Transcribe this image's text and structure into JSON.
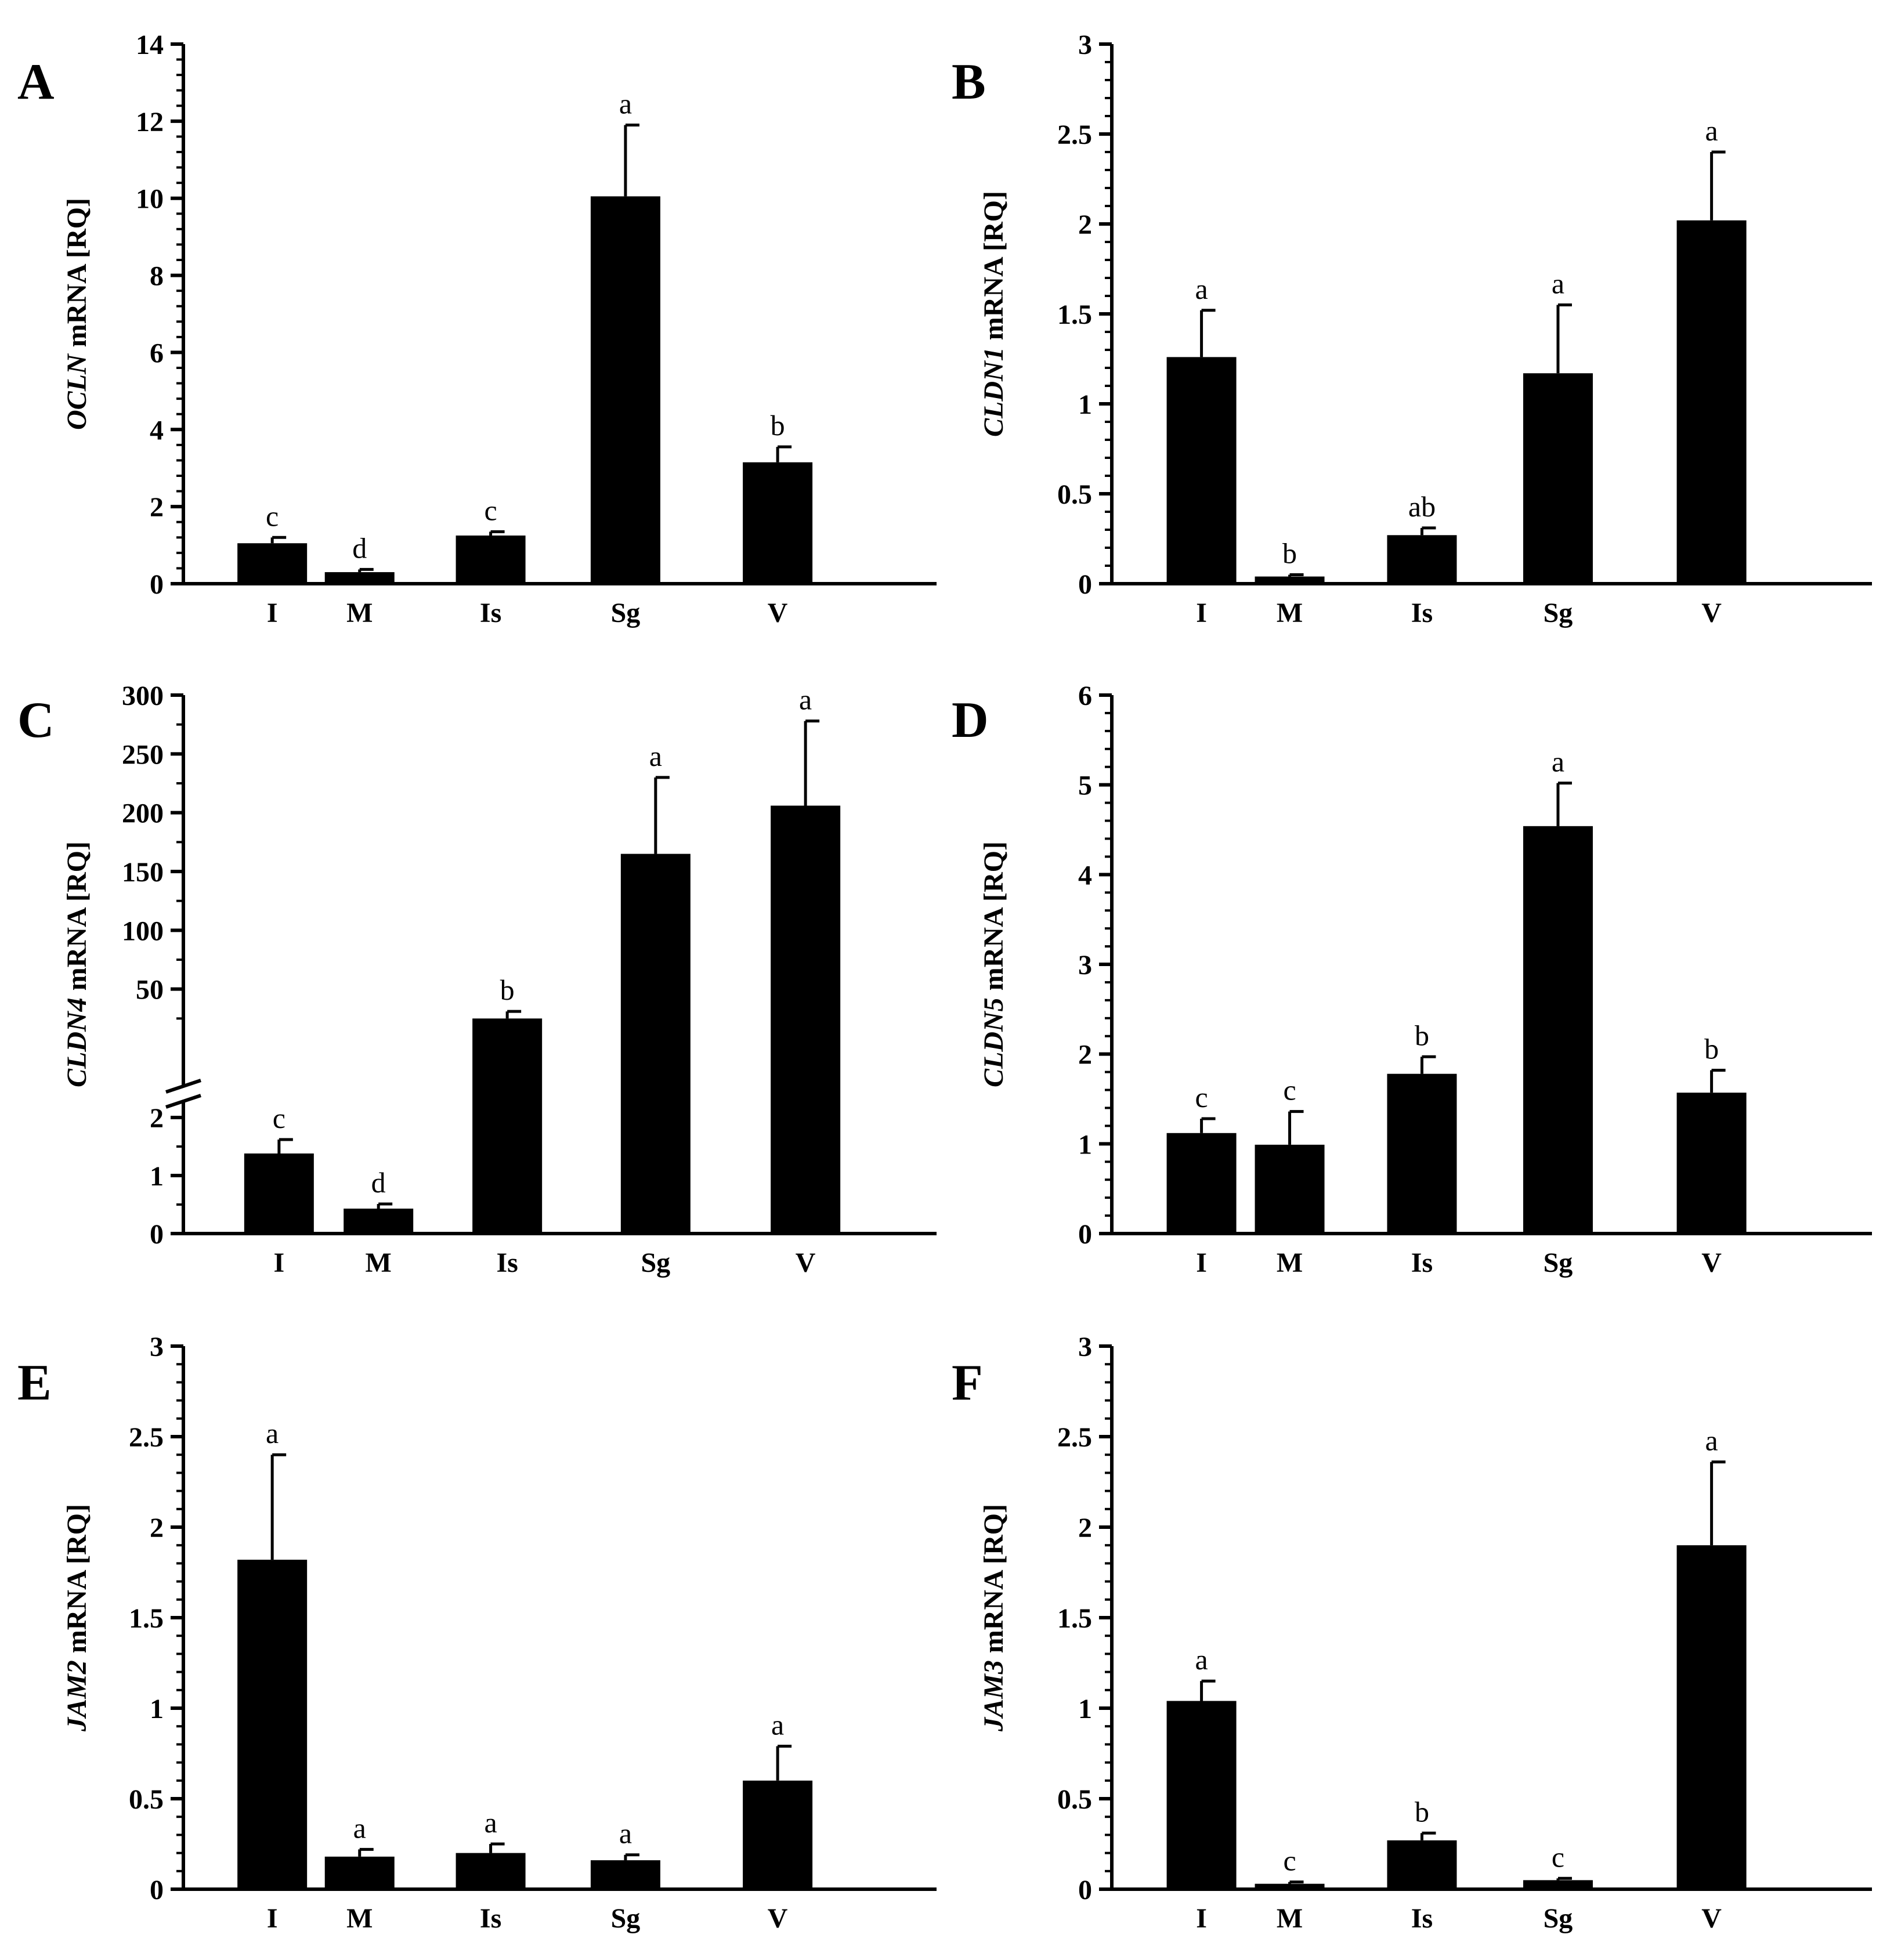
{
  "chart_data": [
    {
      "panel": "A",
      "type": "bar",
      "ylabel_gene": "OCLN",
      "ylabel_rest": " mRNA [RQ]",
      "categories": [
        "I",
        "M",
        "Is",
        "Sg",
        "V"
      ],
      "values": [
        1.05,
        0.3,
        1.25,
        10.05,
        3.15
      ],
      "errors": [
        0.15,
        0.07,
        0.1,
        1.85,
        0.4
      ],
      "significance": [
        "c",
        "d",
        "c",
        "a",
        "b"
      ],
      "yticks": [
        "0",
        "2",
        "4",
        "6",
        "8",
        "10",
        "12",
        "14"
      ],
      "ylim": [
        0,
        14
      ]
    },
    {
      "panel": "B",
      "type": "bar",
      "ylabel_gene": "CLDN1",
      "ylabel_rest": " mRNA [RQ]",
      "categories": [
        "I",
        "M",
        "Is",
        "Sg",
        "V"
      ],
      "values": [
        1.26,
        0.04,
        0.27,
        1.17,
        2.02
      ],
      "errors": [
        0.26,
        0.01,
        0.04,
        0.38,
        0.38
      ],
      "significance": [
        "a",
        "b",
        "ab",
        "a",
        "a"
      ],
      "yticks": [
        "0",
        "0.5",
        "1",
        "1.5",
        "2",
        "2.5",
        "3"
      ],
      "ylim": [
        0,
        3
      ]
    },
    {
      "panel": "C",
      "type": "bar",
      "axis_break": true,
      "ylabel_gene": "CLDN4",
      "ylabel_rest": " mRNA [RQ]",
      "categories": [
        "I",
        "M",
        "Is",
        "Sg",
        "V"
      ],
      "values": [
        1.38,
        0.43,
        25,
        165,
        206
      ],
      "errors": [
        0.24,
        0.08,
        6,
        65,
        72
      ],
      "significance": [
        "c",
        "d",
        "b",
        "a",
        "a"
      ],
      "yticks_lower": [
        "0",
        "1",
        "2"
      ],
      "yticks_upper": [
        "50",
        "100",
        "150",
        "200",
        "250",
        "300"
      ],
      "lower_range": [
        0,
        2
      ],
      "upper_range": [
        0,
        300
      ]
    },
    {
      "panel": "D",
      "type": "bar",
      "ylabel_gene": "CLDN5",
      "ylabel_rest": " mRNA [RQ]",
      "categories": [
        "I",
        "M",
        "Is",
        "Sg",
        "V"
      ],
      "values": [
        1.12,
        0.99,
        1.78,
        4.54,
        1.57
      ],
      "errors": [
        0.16,
        0.37,
        0.19,
        0.48,
        0.25
      ],
      "significance": [
        "c",
        "c",
        "b",
        "a",
        "b"
      ],
      "yticks": [
        "0",
        "1",
        "2",
        "3",
        "4",
        "5",
        "6"
      ],
      "ylim": [
        0,
        6
      ]
    },
    {
      "panel": "E",
      "type": "bar",
      "ylabel_gene": "JAM2",
      "ylabel_rest": " mRNA [RQ]",
      "categories": [
        "I",
        "M",
        "Is",
        "Sg",
        "V"
      ],
      "values": [
        1.82,
        0.18,
        0.2,
        0.16,
        0.6
      ],
      "errors": [
        0.58,
        0.04,
        0.05,
        0.03,
        0.19
      ],
      "significance": [
        "a",
        "a",
        "a",
        "a",
        "a"
      ],
      "yticks": [
        "0",
        "0.5",
        "1",
        "1.5",
        "2",
        "2.5",
        "3"
      ],
      "ylim": [
        0,
        3
      ]
    },
    {
      "panel": "F",
      "type": "bar",
      "ylabel_gene": "JAM3",
      "ylabel_rest": " mRNA [RQ]",
      "categories": [
        "I",
        "M",
        "Is",
        "Sg",
        "V"
      ],
      "values": [
        1.04,
        0.03,
        0.27,
        0.05,
        1.9
      ],
      "errors": [
        0.11,
        0.01,
        0.04,
        0.01,
        0.46
      ],
      "significance": [
        "a",
        "c",
        "b",
        "c",
        "a"
      ],
      "yticks": [
        "0",
        "0.5",
        "1",
        "1.5",
        "2",
        "2.5",
        "3"
      ],
      "ylim": [
        0,
        3
      ]
    }
  ]
}
